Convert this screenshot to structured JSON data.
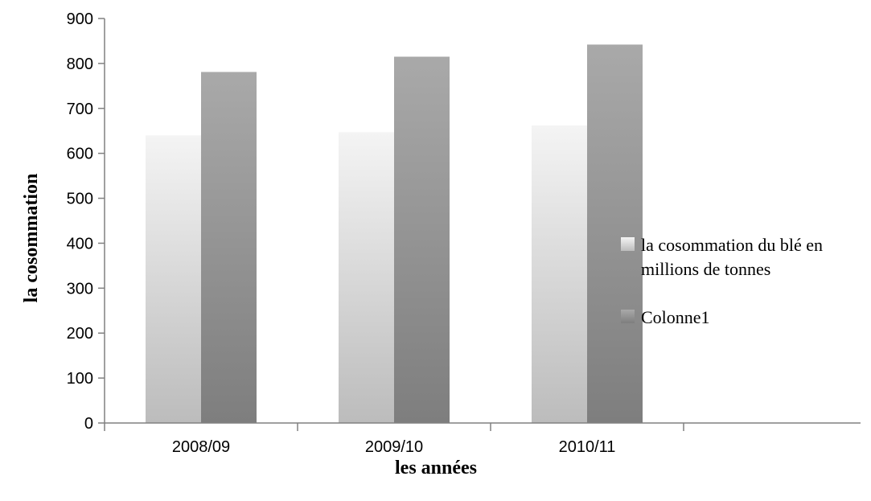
{
  "chart_data": {
    "type": "bar",
    "categories": [
      "2008/09",
      "2009/10",
      "2010/11"
    ],
    "series": [
      {
        "name": "la cosommation du blé en millions de tonnes",
        "values": [
          640,
          647,
          662
        ]
      },
      {
        "name": "Colonne1",
        "values": [
          781,
          815,
          842
        ]
      }
    ],
    "xlabel": "les années",
    "ylabel": "la cosommation",
    "ylim": [
      0,
      900
    ],
    "yticks": [
      0,
      100,
      200,
      300,
      400,
      500,
      600,
      700,
      800,
      900
    ],
    "grid": false,
    "legend_position": "right",
    "legend_lines": [
      [
        "la cosommation du blé en",
        "millions de tonnes"
      ],
      [
        "Colonne1"
      ]
    ],
    "colors": {
      "series1_top": "#f4f4f4",
      "series1_bottom": "#bcbcbc",
      "series2_top": "#a9a9a9",
      "series2_bottom": "#7e7e7e",
      "axis": "#808080"
    }
  }
}
